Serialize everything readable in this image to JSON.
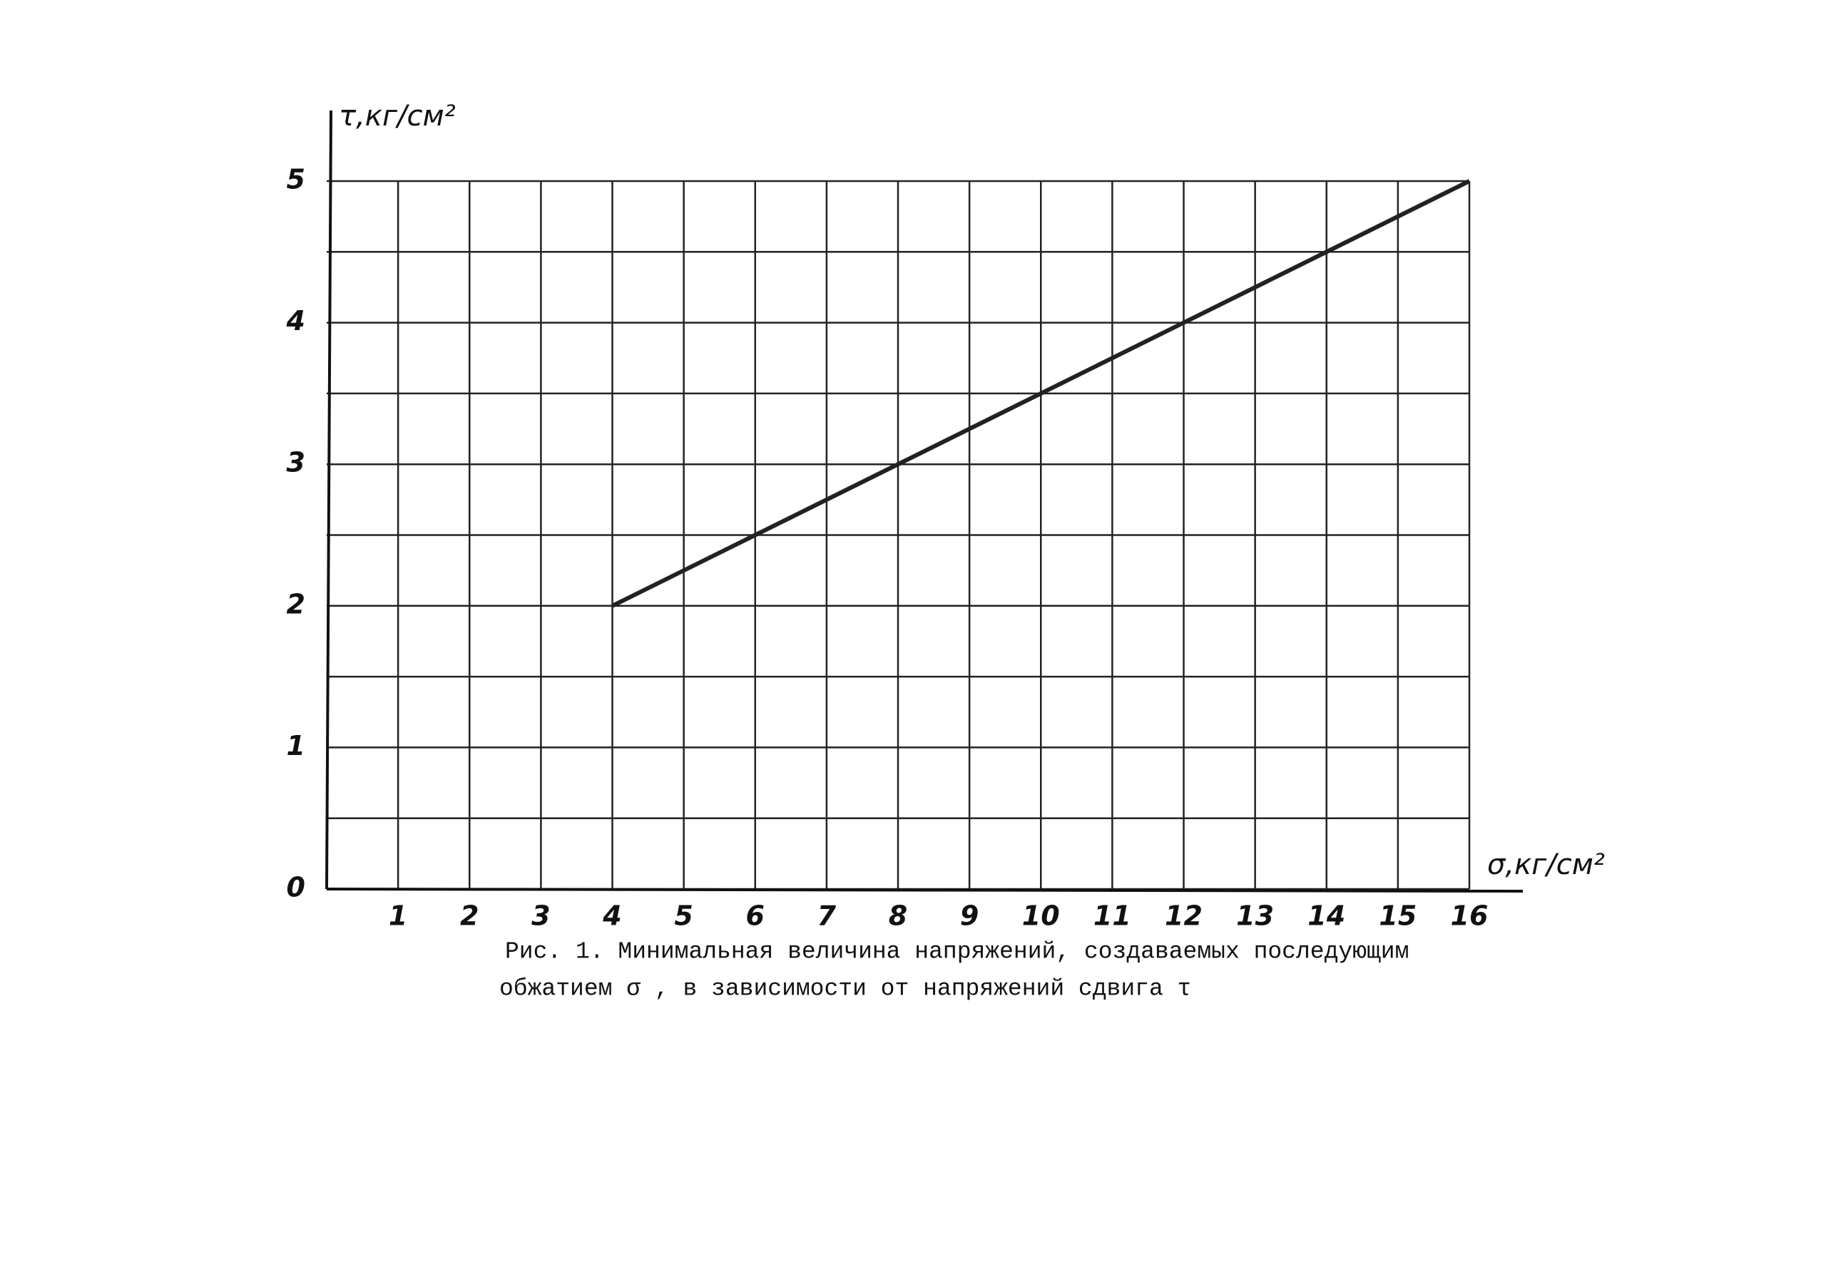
{
  "chart_data": {
    "type": "line",
    "x_label": "σ,кг/см²",
    "y_label": "τ,кг/см²",
    "caption": [
      "Рис. 1. Минимальная величина напряжений, создаваемых последующим",
      "обжатием σ , в зависимости от напряжений сдвига τ"
    ],
    "x": [
      4,
      16
    ],
    "values": [
      2,
      5
    ],
    "color": "#222222",
    "xlim": [
      0,
      16
    ],
    "xticks": [
      1,
      2,
      3,
      4,
      5,
      6,
      7,
      8,
      9,
      10,
      11,
      12,
      13,
      14,
      15,
      16
    ],
    "ylim": [
      0,
      5
    ],
    "yticks": [
      0,
      1,
      2,
      3,
      4,
      5
    ],
    "grid": true
  }
}
